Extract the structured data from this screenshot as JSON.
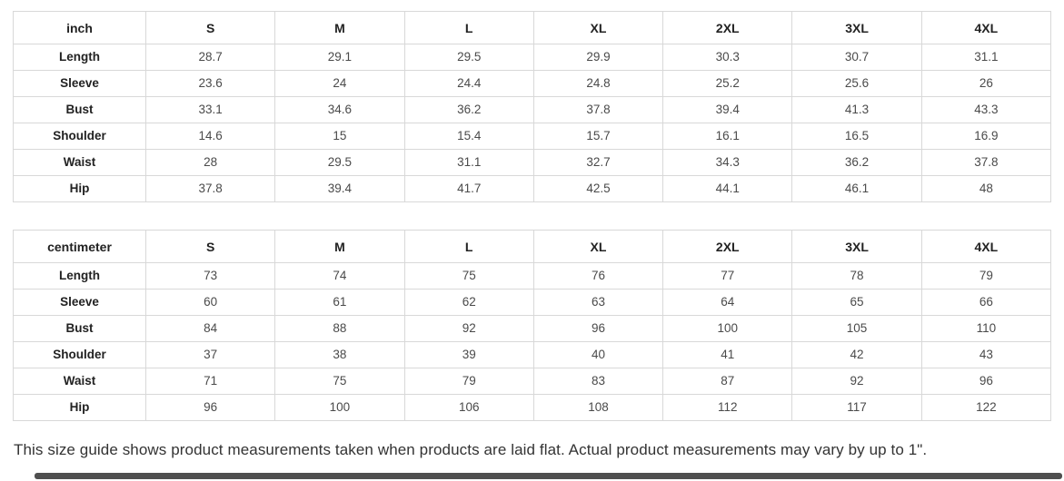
{
  "colors": {
    "border": "#d8d8d8",
    "header_text": "#222222",
    "value_text": "#4a4a4a",
    "note_text": "#333333",
    "scrollbar_thumb": "#4f4f4f",
    "background": "#ffffff"
  },
  "tables": [
    {
      "unit_label": "inch",
      "columns": [
        "S",
        "M",
        "L",
        "XL",
        "2XL",
        "3XL",
        "4XL"
      ],
      "rows": [
        {
          "label": "Length",
          "values": [
            "28.7",
            "29.1",
            "29.5",
            "29.9",
            "30.3",
            "30.7",
            "31.1"
          ]
        },
        {
          "label": "Sleeve",
          "values": [
            "23.6",
            "24",
            "24.4",
            "24.8",
            "25.2",
            "25.6",
            "26"
          ]
        },
        {
          "label": "Bust",
          "values": [
            "33.1",
            "34.6",
            "36.2",
            "37.8",
            "39.4",
            "41.3",
            "43.3"
          ]
        },
        {
          "label": "Shoulder",
          "values": [
            "14.6",
            "15",
            "15.4",
            "15.7",
            "16.1",
            "16.5",
            "16.9"
          ]
        },
        {
          "label": "Waist",
          "values": [
            "28",
            "29.5",
            "31.1",
            "32.7",
            "34.3",
            "36.2",
            "37.8"
          ]
        },
        {
          "label": "Hip",
          "values": [
            "37.8",
            "39.4",
            "41.7",
            "42.5",
            "44.1",
            "46.1",
            "48"
          ]
        }
      ]
    },
    {
      "unit_label": "centimeter",
      "columns": [
        "S",
        "M",
        "L",
        "XL",
        "2XL",
        "3XL",
        "4XL"
      ],
      "rows": [
        {
          "label": "Length",
          "values": [
            "73",
            "74",
            "75",
            "76",
            "77",
            "78",
            "79"
          ]
        },
        {
          "label": "Sleeve",
          "values": [
            "60",
            "61",
            "62",
            "63",
            "64",
            "65",
            "66"
          ]
        },
        {
          "label": "Bust",
          "values": [
            "84",
            "88",
            "92",
            "96",
            "100",
            "105",
            "110"
          ]
        },
        {
          "label": "Shoulder",
          "values": [
            "37",
            "38",
            "39",
            "40",
            "41",
            "42",
            "43"
          ]
        },
        {
          "label": "Waist",
          "values": [
            "71",
            "75",
            "79",
            "83",
            "87",
            "92",
            "96"
          ]
        },
        {
          "label": "Hip",
          "values": [
            "96",
            "100",
            "106",
            "108",
            "112",
            "117",
            "122"
          ]
        }
      ]
    }
  ],
  "footer": {
    "note": "This size guide shows product measurements taken when products are laid flat. Actual product measurements may vary by up to 1\"."
  }
}
